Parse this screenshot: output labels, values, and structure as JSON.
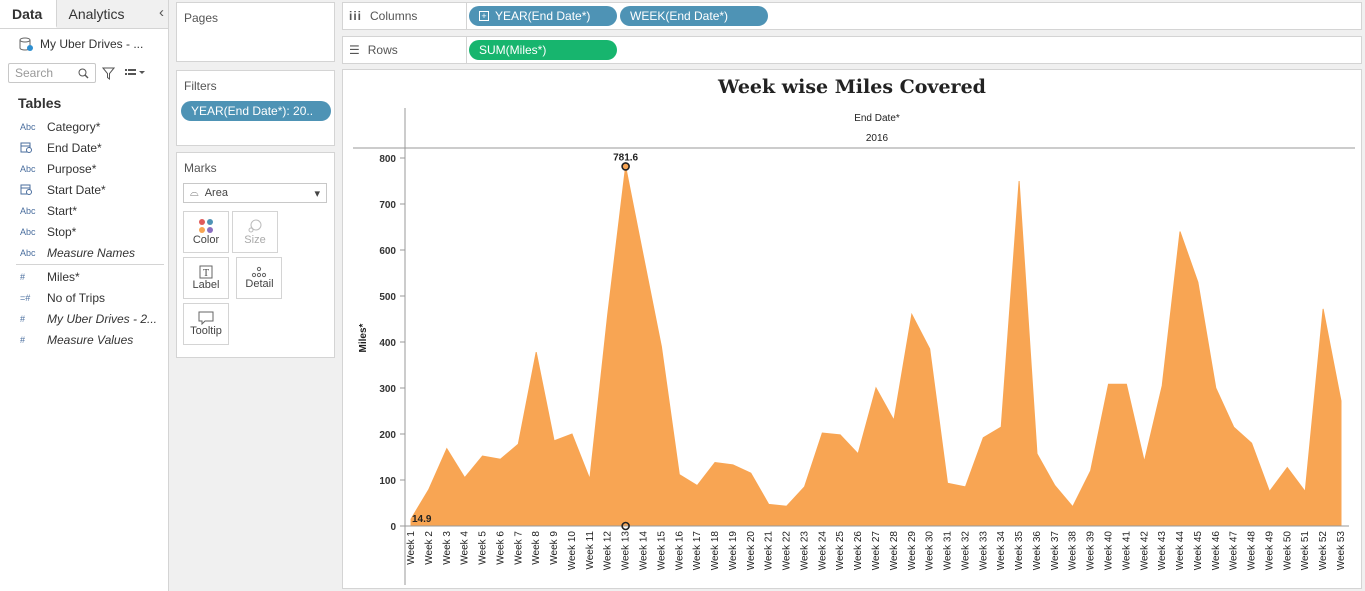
{
  "sidebar": {
    "tabs": [
      "Data",
      "Analytics"
    ],
    "datasource": "My Uber Drives - ...",
    "search_placeholder": "Search",
    "tables_label": "Tables",
    "dimensions": [
      {
        "type": "Abc",
        "label": "Category*"
      },
      {
        "type": "date",
        "label": "End Date*"
      },
      {
        "type": "Abc",
        "label": "Purpose*"
      },
      {
        "type": "date",
        "label": "Start Date*"
      },
      {
        "type": "Abc",
        "label": "Start*"
      },
      {
        "type": "Abc",
        "label": "Stop*"
      },
      {
        "type": "Abc",
        "label": "Measure Names",
        "italic": true
      }
    ],
    "measures": [
      {
        "type": "#",
        "label": "Miles*"
      },
      {
        "type": "=#",
        "label": "No of Trips"
      },
      {
        "type": "#",
        "label": "My Uber Drives - 2...",
        "italic": true
      },
      {
        "type": "#",
        "label": "Measure Values",
        "italic": true
      }
    ]
  },
  "pages": {
    "title": "Pages"
  },
  "filters": {
    "title": "Filters",
    "pill": "YEAR(End Date*): 20.."
  },
  "marks": {
    "title": "Marks",
    "type": "Area",
    "buttons": [
      {
        "label": "Color",
        "icon": "color-dots-icon"
      },
      {
        "label": "Size",
        "icon": "size-icon"
      },
      {
        "label": "Label",
        "icon": "label-T-icon"
      },
      {
        "label": "Detail",
        "icon": "detail-dots-icon"
      },
      {
        "label": "Tooltip",
        "icon": "tooltip-icon"
      }
    ]
  },
  "columns": {
    "label": "Columns",
    "pills": [
      "YEAR(End Date*)",
      "WEEK(End Date*)"
    ]
  },
  "rows": {
    "label": "Rows",
    "pills": [
      "SUM(Miles*)"
    ]
  },
  "colors": {
    "area": "#f8a553",
    "blue_pill": "#4e93b5",
    "green_pill": "#17b56e"
  },
  "chart_data": {
    "type": "area",
    "title": "Week wise Miles Covered",
    "header_label": "End Date*",
    "header_value": "2016",
    "ylabel": "Miles*",
    "ylim": [
      0,
      820
    ],
    "yticks": [
      0,
      100,
      200,
      300,
      400,
      500,
      600,
      700,
      800
    ],
    "categories": [
      "Week 1",
      "Week 2",
      "Week 3",
      "Week 4",
      "Week 5",
      "Week 6",
      "Week 7",
      "Week 8",
      "Week 9",
      "Week 10",
      "Week 11",
      "Week 12",
      "Week 13",
      "Week 14",
      "Week 15",
      "Week 16",
      "Week 17",
      "Week 18",
      "Week 19",
      "Week 20",
      "Week 21",
      "Week 22",
      "Week 23",
      "Week 24",
      "Week 25",
      "Week 26",
      "Week 27",
      "Week 28",
      "Week 29",
      "Week 30",
      "Week 31",
      "Week 32",
      "Week 33",
      "Week 34",
      "Week 35",
      "Week 36",
      "Week 37",
      "Week 38",
      "Week 39",
      "Week 40",
      "Week 41",
      "Week 42",
      "Week 43",
      "Week 44",
      "Week 45",
      "Week 46",
      "Week 47",
      "Week 48",
      "Week 49",
      "Week 50",
      "Week 51",
      "Week 52",
      "Week 53"
    ],
    "values": [
      14.9,
      80,
      168,
      105,
      152,
      145,
      178,
      378,
      185,
      200,
      102,
      460,
      781.6,
      585,
      390,
      112,
      88,
      138,
      133,
      115,
      47,
      43,
      85,
      202,
      198,
      157,
      300,
      230,
      460,
      385,
      93,
      85,
      192,
      215,
      750,
      157,
      88,
      42,
      120,
      308,
      308,
      140,
      305,
      640,
      530,
      300,
      215,
      180,
      75,
      127,
      75,
      472,
      272
    ],
    "data_labels": [
      {
        "category": "Week 1",
        "text": "14.9"
      },
      {
        "category": "Week 13",
        "text": "781.6"
      }
    ]
  }
}
